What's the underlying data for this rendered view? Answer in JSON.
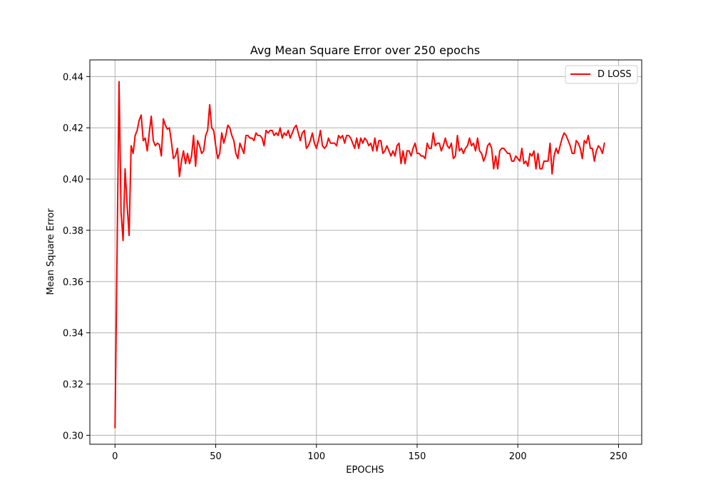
{
  "chart_data": {
    "type": "line",
    "title": "Avg Mean Square Error over 250 epochs",
    "xlabel": "EPOCHS",
    "ylabel": "Mean Square Error",
    "xlim": [
      -12.5,
      261.5
    ],
    "ylim": [
      0.2965,
      0.4465
    ],
    "xticks": [
      0,
      50,
      100,
      150,
      200,
      250
    ],
    "yticks": [
      0.3,
      0.32,
      0.34,
      0.36,
      0.38,
      0.4,
      0.42,
      0.44
    ],
    "xtick_labels": [
      "0",
      "50",
      "100",
      "150",
      "200",
      "250"
    ],
    "ytick_labels": [
      "0.30",
      "0.32",
      "0.34",
      "0.36",
      "0.38",
      "0.40",
      "0.42",
      "0.44"
    ],
    "grid": true,
    "legend_position": "top-right",
    "series": [
      {
        "name": "D LOSS",
        "color": "#ff0000",
        "x_start": 0,
        "x_step": 1,
        "y": [
          0.303,
          0.37,
          0.438,
          0.387,
          0.376,
          0.404,
          0.39,
          0.378,
          0.413,
          0.41,
          0.417,
          0.419,
          0.423,
          0.425,
          0.415,
          0.416,
          0.411,
          0.418,
          0.4245,
          0.415,
          0.413,
          0.414,
          0.4135,
          0.409,
          0.4235,
          0.421,
          0.4195,
          0.42,
          0.4145,
          0.408,
          0.409,
          0.412,
          0.401,
          0.407,
          0.411,
          0.406,
          0.41,
          0.406,
          0.409,
          0.417,
          0.405,
          0.415,
          0.413,
          0.41,
          0.411,
          0.417,
          0.419,
          0.429,
          0.42,
          0.419,
          0.413,
          0.408,
          0.41,
          0.418,
          0.414,
          0.417,
          0.421,
          0.42,
          0.417,
          0.415,
          0.41,
          0.408,
          0.414,
          0.412,
          0.41,
          0.417,
          0.417,
          0.416,
          0.416,
          0.415,
          0.418,
          0.417,
          0.417,
          0.416,
          0.413,
          0.419,
          0.418,
          0.419,
          0.419,
          0.417,
          0.418,
          0.417,
          0.42,
          0.416,
          0.418,
          0.417,
          0.419,
          0.416,
          0.418,
          0.42,
          0.421,
          0.418,
          0.415,
          0.418,
          0.419,
          0.412,
          0.413,
          0.415,
          0.418,
          0.414,
          0.412,
          0.415,
          0.419,
          0.413,
          0.412,
          0.413,
          0.416,
          0.414,
          0.414,
          0.414,
          0.413,
          0.417,
          0.416,
          0.417,
          0.414,
          0.417,
          0.417,
          0.416,
          0.414,
          0.412,
          0.416,
          0.412,
          0.416,
          0.414,
          0.416,
          0.415,
          0.413,
          0.414,
          0.411,
          0.416,
          0.411,
          0.415,
          0.415,
          0.41,
          0.411,
          0.413,
          0.411,
          0.409,
          0.411,
          0.409,
          0.413,
          0.414,
          0.406,
          0.411,
          0.406,
          0.411,
          0.411,
          0.409,
          0.412,
          0.414,
          0.41,
          0.41,
          0.409,
          0.409,
          0.408,
          0.414,
          0.412,
          0.412,
          0.418,
          0.413,
          0.414,
          0.414,
          0.411,
          0.413,
          0.416,
          0.413,
          0.412,
          0.414,
          0.408,
          0.409,
          0.417,
          0.411,
          0.412,
          0.41,
          0.412,
          0.413,
          0.416,
          0.413,
          0.414,
          0.411,
          0.416,
          0.411,
          0.41,
          0.407,
          0.409,
          0.413,
          0.414,
          0.412,
          0.404,
          0.409,
          0.404,
          0.411,
          0.412,
          0.412,
          0.411,
          0.41,
          0.41,
          0.407,
          0.407,
          0.409,
          0.408,
          0.407,
          0.412,
          0.406,
          0.407,
          0.405,
          0.41,
          0.409,
          0.411,
          0.404,
          0.41,
          0.404,
          0.404,
          0.407,
          0.407,
          0.407,
          0.414,
          0.402,
          0.409,
          0.412,
          0.41,
          0.413,
          0.416,
          0.418,
          0.417,
          0.415,
          0.413,
          0.41,
          0.41,
          0.415,
          0.414,
          0.412,
          0.408,
          0.415,
          0.414,
          0.417,
          0.412,
          0.412,
          0.407,
          0.411,
          0.413,
          0.412,
          0.41,
          0.414
        ]
      }
    ]
  }
}
